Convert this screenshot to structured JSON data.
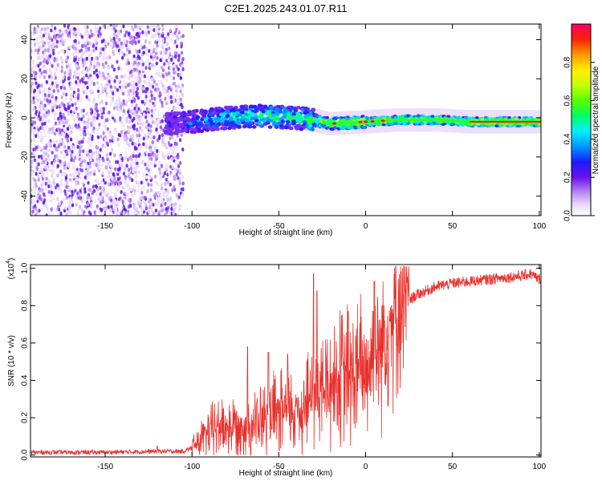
{
  "chart_data": [
    {
      "type": "heatmap",
      "title": "C2E1.2025.243.01.07.R11",
      "xlabel": "Height of straight line (km)",
      "ylabel": "Frequency (Hz)",
      "xlim": [
        -193,
        101
      ],
      "ylim": [
        -50,
        48
      ],
      "xticks": [
        -150,
        -100,
        -50,
        0,
        50,
        100
      ],
      "xtick_labels": [
        "-150",
        "-100",
        "-50",
        "0",
        "50",
        "100"
      ],
      "yticks": [
        -40,
        -20,
        0,
        20,
        40
      ],
      "ytick_labels": [
        "-40",
        "-20",
        "0",
        "20",
        "40"
      ],
      "colorbar": {
        "label": "Normalized spectral amplitude",
        "range": [
          0,
          1
        ],
        "ticks": [
          0.0,
          0.2,
          0.4,
          0.6,
          0.8
        ],
        "tick_labels": [
          "0.0",
          "0.2",
          "0.4",
          "0.6",
          "0.8"
        ]
      },
      "ridge": {
        "x": [
          -110,
          -100,
          -80,
          -60,
          -40,
          -30,
          -20,
          0,
          20,
          40,
          60,
          80,
          100
        ],
        "freq": [
          -3,
          -2,
          0,
          1,
          0,
          -1,
          -3,
          -2,
          -1,
          -1,
          -2,
          -2,
          -2
        ],
        "amplitude": [
          0.2,
          0.3,
          0.45,
          0.5,
          0.5,
          0.55,
          0.75,
          0.8,
          0.75,
          0.75,
          0.8,
          0.9,
          0.95
        ]
      },
      "noise_region_x": [
        -193,
        -105
      ]
    },
    {
      "type": "line",
      "title": "",
      "xlabel": "Height of straight line (km)",
      "ylabel": "SNR (10 * v/v)",
      "y_multiplier": "(x10",
      "y_multiplier_exp": "4",
      "y_multiplier_close": ")",
      "xlim": [
        -193,
        101
      ],
      "ylim": [
        -0.01,
        1.02
      ],
      "xticks": [
        -150,
        -100,
        -50,
        0,
        50,
        100
      ],
      "xtick_labels": [
        "-150",
        "-100",
        "-50",
        "0",
        "50",
        "100"
      ],
      "yticks": [
        0.0,
        0.2,
        0.4,
        0.6,
        0.8,
        1.0
      ],
      "ytick_labels": [
        "0.0",
        "0.2",
        "0.4",
        "0.6",
        "0.8",
        "1.0"
      ],
      "color": "#e8302b",
      "series": [
        {
          "name": "SNR",
          "x": [
            -193,
            -150,
            -120,
            -105,
            -100,
            -95,
            -90,
            -85,
            -80,
            -70,
            -60,
            -50,
            -40,
            -35,
            -30,
            -20,
            -10,
            0,
            5,
            10,
            15,
            20,
            30,
            40,
            50,
            60,
            70,
            80,
            90,
            95,
            100,
            101
          ],
          "y": [
            0.015,
            0.015,
            0.02,
            0.02,
            0.04,
            0.08,
            0.12,
            0.15,
            0.15,
            0.16,
            0.18,
            0.22,
            0.24,
            0.27,
            0.32,
            0.38,
            0.42,
            0.45,
            0.55,
            0.63,
            0.72,
            0.8,
            0.86,
            0.9,
            0.92,
            0.93,
            0.94,
            0.95,
            0.96,
            0.97,
            0.94,
            0.95
          ]
        }
      ],
      "spikes": [
        {
          "x": -68,
          "y": 0.58
        },
        {
          "x": -56,
          "y": 0.55
        },
        {
          "x": -45,
          "y": 0.54
        },
        {
          "x": -30,
          "y": 0.97
        },
        {
          "x": -28,
          "y": 0.88
        },
        {
          "x": -10,
          "y": 0.77
        },
        {
          "x": 5,
          "y": 0.93
        },
        {
          "x": 15,
          "y": 0.8
        }
      ]
    }
  ]
}
